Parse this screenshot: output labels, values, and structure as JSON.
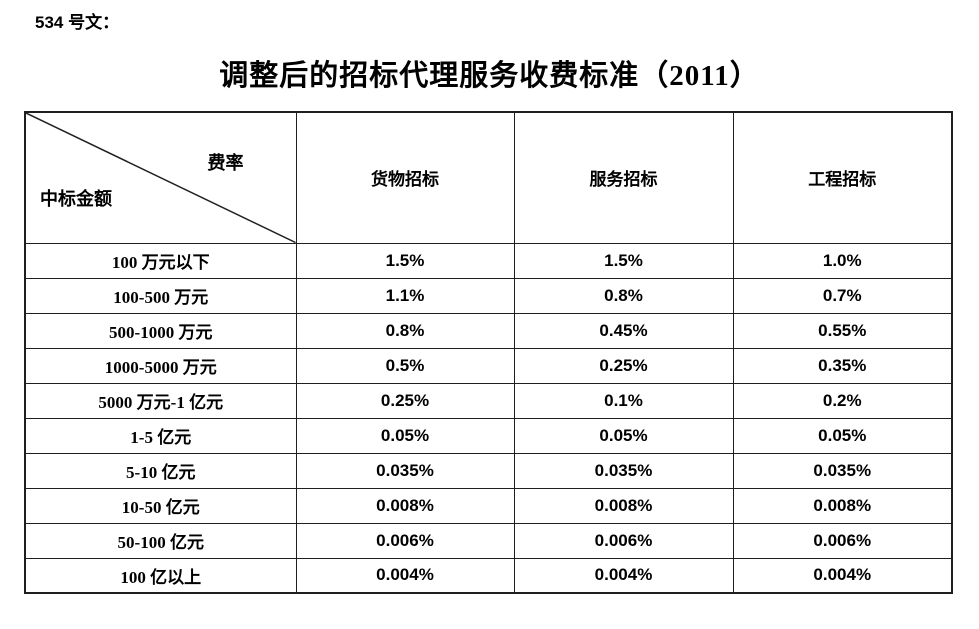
{
  "doc_ref": "534 号文：",
  "title": "调整后的招标代理服务收费标准（2011）",
  "colors": {
    "background": "#ffffff",
    "border": "#1f1f1f",
    "text": "#000000"
  },
  "table": {
    "corner": {
      "top_right_label": "费率",
      "bottom_left_label": "中标金额"
    },
    "columns": [
      "货物招标",
      "服务招标",
      "工程招标"
    ],
    "rows": [
      {
        "label": "100 万元以下",
        "values": [
          "1.5%",
          "1.5%",
          "1.0%"
        ]
      },
      {
        "label": "100-500 万元",
        "values": [
          "1.1%",
          "0.8%",
          "0.7%"
        ]
      },
      {
        "label": "500-1000 万元",
        "values": [
          "0.8%",
          "0.45%",
          "0.55%"
        ]
      },
      {
        "label": "1000-5000 万元",
        "values": [
          "0.5%",
          "0.25%",
          "0.35%"
        ]
      },
      {
        "label": "5000 万元-1 亿元",
        "values": [
          "0.25%",
          "0.1%",
          "0.2%"
        ]
      },
      {
        "label": "1-5 亿元",
        "values": [
          "0.05%",
          "0.05%",
          "0.05%"
        ]
      },
      {
        "label": "5-10 亿元",
        "values": [
          "0.035%",
          "0.035%",
          "0.035%"
        ]
      },
      {
        "label": "10-50 亿元",
        "values": [
          "0.008%",
          "0.008%",
          "0.008%"
        ]
      },
      {
        "label": "50-100 亿元",
        "values": [
          "0.006%",
          "0.006%",
          "0.006%"
        ]
      },
      {
        "label": "100 亿以上",
        "values": [
          "0.004%",
          "0.004%",
          "0.004%"
        ]
      }
    ]
  }
}
